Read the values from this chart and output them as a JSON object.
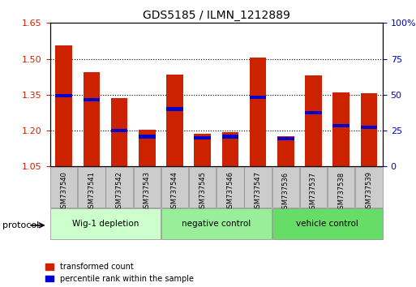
{
  "title": "GDS5185 / ILMN_1212889",
  "samples": [
    "GSM737540",
    "GSM737541",
    "GSM737542",
    "GSM737543",
    "GSM737544",
    "GSM737545",
    "GSM737546",
    "GSM737547",
    "GSM737536",
    "GSM737537",
    "GSM737538",
    "GSM737539"
  ],
  "red_values": [
    1.555,
    1.445,
    1.335,
    1.205,
    1.435,
    1.185,
    1.195,
    1.505,
    1.175,
    1.43,
    1.36,
    1.355
  ],
  "blue_values": [
    1.345,
    1.33,
    1.2,
    1.175,
    1.29,
    1.17,
    1.175,
    1.34,
    1.165,
    1.275,
    1.22,
    1.215
  ],
  "ylim_left": [
    1.05,
    1.65
  ],
  "ylim_right": [
    0,
    100
  ],
  "yticks_left": [
    1.05,
    1.2,
    1.35,
    1.5,
    1.65
  ],
  "yticks_right": [
    0,
    25,
    50,
    75,
    100
  ],
  "ytick_right_labels": [
    "0",
    "25",
    "50",
    "75",
    "100%"
  ],
  "bar_bottom": 1.05,
  "bar_width": 0.6,
  "groups": [
    {
      "label": "Wig-1 depletion",
      "indices": [
        0,
        1,
        2,
        3
      ],
      "color": "#ccffcc"
    },
    {
      "label": "negative control",
      "indices": [
        4,
        5,
        6,
        7
      ],
      "color": "#99ee99"
    },
    {
      "label": "vehicle control",
      "indices": [
        8,
        9,
        10,
        11
      ],
      "color": "#66dd66"
    }
  ],
  "red_color": "#cc2200",
  "blue_color": "#0000cc",
  "grid_color": "#000000",
  "protocol_label": "protocol",
  "legend_red": "transformed count",
  "legend_blue": "percentile rank within the sample"
}
